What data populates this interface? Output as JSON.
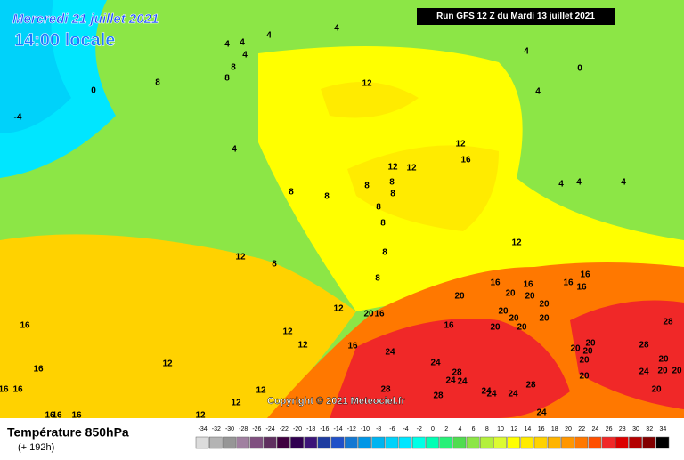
{
  "header": {
    "date": "Mercredi 21 juillet 2021",
    "time": "14:00 locale",
    "run": "Run GFS 12 Z du Mardi 13 juillet 2021"
  },
  "footer": {
    "title": "Température 850hPa",
    "subtitle": "(+ 192h)",
    "copyright": "Copyright © 2021 Meteociel.fr"
  },
  "scale": {
    "labels": [
      -34,
      -32,
      -30,
      -28,
      -26,
      -24,
      -22,
      -20,
      -18,
      -16,
      -14,
      -12,
      -10,
      -8,
      -6,
      -4,
      -2,
      0,
      2,
      4,
      6,
      8,
      10,
      12,
      14,
      16,
      18,
      20,
      22,
      24,
      26,
      28,
      30,
      32,
      34
    ],
    "colors": [
      "#dcdcdc",
      "#b4b4b4",
      "#969696",
      "#a080a0",
      "#805080",
      "#603060",
      "#400040",
      "#300050",
      "#3c1478",
      "#1e3ca0",
      "#2050c8",
      "#1478d2",
      "#0096e6",
      "#00b4f0",
      "#00d2fa",
      "#00e6ff",
      "#00ffe6",
      "#00ffb4",
      "#28f078",
      "#50dc50",
      "#8ce646",
      "#b4f03c",
      "#dcfa32",
      "#ffff00",
      "#ffeb00",
      "#ffd200",
      "#ffb400",
      "#ff9600",
      "#ff7800",
      "#ff5000",
      "#f02828",
      "#dc0000",
      "#b40000",
      "#820000",
      "#000000"
    ]
  },
  "contour_labels": [
    "4",
    "4",
    "4",
    "4",
    "4",
    "8",
    "8",
    "0",
    "8",
    "-4",
    "12",
    "4",
    "8",
    "8",
    "8",
    "8",
    "8",
    "8",
    "8",
    "12",
    "12",
    "12",
    "16",
    "4",
    "4",
    "0",
    "4",
    "4",
    "4",
    "12",
    "12",
    "8",
    "8",
    "8",
    "16",
    "16",
    "16",
    "16",
    "16",
    "20",
    "20",
    "20",
    "20",
    "12",
    "20",
    "16",
    "16",
    "20",
    "20",
    "20",
    "20",
    "20",
    "20",
    "20",
    "20",
    "28",
    "20",
    "24",
    "20",
    "20",
    "20",
    "16",
    "12",
    "12",
    "16",
    "24",
    "12",
    "24",
    "28",
    "24",
    "24",
    "24",
    "24",
    "24",
    "28",
    "28",
    "28",
    "12",
    "12",
    "16",
    "16",
    "16",
    "16",
    "16",
    "16",
    "12",
    "24",
    "20",
    "20",
    "28"
  ]
}
